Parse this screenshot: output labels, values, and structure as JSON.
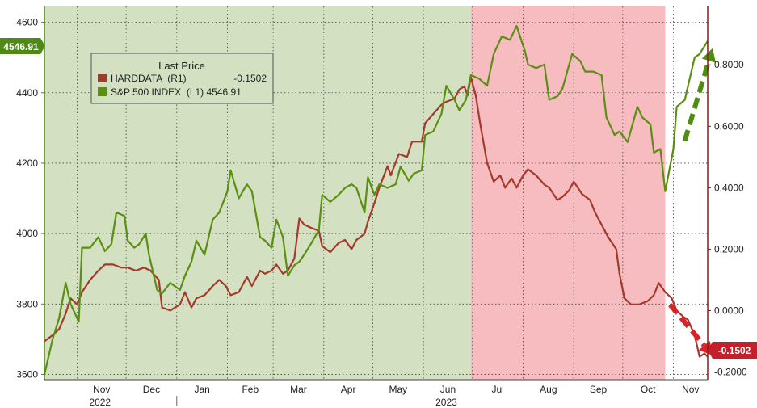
{
  "colors": {
    "sp500": "#5a8f12",
    "harddata": "#a33a2c",
    "bg_green": "#d3e0c1",
    "bg_red": "#f6bcbf",
    "arrow_green": "#4f8d10",
    "arrow_red": "#d9222a",
    "grid": "#444444",
    "left_axis": "#4f8a14",
    "right_axis": "#8b1a1a"
  },
  "legend": {
    "title": "Last Price",
    "items": [
      {
        "label": "HARDDATA  (R1)",
        "value": "-0.1502"
      },
      {
        "label": "S&P 500 INDEX  (L1) 4546.91",
        "value": ""
      }
    ]
  },
  "badges": {
    "left": "4546.91",
    "right": "-0.1502"
  },
  "chart_data": {
    "type": "line",
    "x_axis": {
      "months": [
        {
          "label": "Nov",
          "date": "2022-11-01"
        },
        {
          "label": "Dec",
          "date": "2022-12-01"
        },
        {
          "label": "Jan",
          "date": "2023-01-01"
        },
        {
          "label": "Feb",
          "date": "2023-02-01"
        },
        {
          "label": "Mar",
          "date": "2023-03-01"
        },
        {
          "label": "Apr",
          "date": "2023-04-01"
        },
        {
          "label": "May",
          "date": "2023-05-01"
        },
        {
          "label": "Jun",
          "date": "2023-06-01"
        },
        {
          "label": "Jul",
          "date": "2023-07-01"
        },
        {
          "label": "Aug",
          "date": "2023-08-01"
        },
        {
          "label": "Sep",
          "date": "2023-09-01"
        },
        {
          "label": "Oct",
          "date": "2023-10-01"
        },
        {
          "label": "Nov",
          "date": "2023-11-01"
        }
      ],
      "years": [
        {
          "label": "2022",
          "date": "2022-11-15"
        },
        {
          "label": "2023",
          "date": "2023-06-15"
        }
      ],
      "range": [
        "2022-10-12",
        "2023-11-22"
      ]
    },
    "left_axis": {
      "ticks": [
        "4600",
        "4400",
        "4200",
        "4000",
        "3800",
        "3600"
      ],
      "tick_values": [
        4600,
        4400,
        4200,
        4000,
        3800,
        3600
      ],
      "ylim": [
        3585,
        4645
      ]
    },
    "right_axis": {
      "ticks": [
        "0.8000",
        "0.6000",
        "0.4000",
        "0.2000",
        "0.0000",
        "-0.2000"
      ],
      "tick_values": [
        0.8,
        0.6,
        0.4,
        0.2,
        0.0,
        -0.2
      ],
      "ylim": [
        -0.225,
        0.99
      ]
    },
    "grid": true,
    "shaded_regions": [
      {
        "color": "green",
        "from": "2022-10-12",
        "to": "2023-06-30"
      },
      {
        "color": "red",
        "from": "2023-06-30",
        "to": "2023-10-27"
      }
    ],
    "series": [
      {
        "name": "S&P 500 INDEX",
        "axis": "left",
        "points": [
          [
            "2022-10-12",
            3600
          ],
          [
            "2022-10-17",
            3700
          ],
          [
            "2022-10-21",
            3760
          ],
          [
            "2022-10-25",
            3860
          ],
          [
            "2022-10-28",
            3800
          ],
          [
            "2022-11-02",
            3750
          ],
          [
            "2022-11-04",
            3960
          ],
          [
            "2022-11-09",
            3960
          ],
          [
            "2022-11-14",
            3990
          ],
          [
            "2022-11-18",
            3950
          ],
          [
            "2022-11-22",
            3970
          ],
          [
            "2022-11-25",
            4060
          ],
          [
            "2022-11-30",
            4050
          ],
          [
            "2022-12-02",
            3980
          ],
          [
            "2022-12-06",
            3960
          ],
          [
            "2022-12-09",
            3970
          ],
          [
            "2022-12-13",
            4000
          ],
          [
            "2022-12-15",
            3940
          ],
          [
            "2022-12-20",
            3840
          ],
          [
            "2022-12-23",
            3830
          ],
          [
            "2022-12-28",
            3860
          ],
          [
            "2023-01-03",
            3840
          ],
          [
            "2023-01-06",
            3880
          ],
          [
            "2023-01-10",
            3920
          ],
          [
            "2023-01-13",
            3980
          ],
          [
            "2023-01-18",
            3940
          ],
          [
            "2023-01-23",
            4040
          ],
          [
            "2023-01-27",
            4060
          ],
          [
            "2023-02-01",
            4120
          ],
          [
            "2023-02-03",
            4180
          ],
          [
            "2023-02-08",
            4100
          ],
          [
            "2023-02-13",
            4140
          ],
          [
            "2023-02-16",
            4120
          ],
          [
            "2023-02-21",
            3990
          ],
          [
            "2023-02-24",
            3980
          ],
          [
            "2023-02-28",
            3960
          ],
          [
            "2023-03-03",
            4040
          ],
          [
            "2023-03-07",
            3990
          ],
          [
            "2023-03-10",
            3880
          ],
          [
            "2023-03-14",
            3910
          ],
          [
            "2023-03-17",
            3920
          ],
          [
            "2023-03-20",
            3940
          ],
          [
            "2023-03-24",
            3970
          ],
          [
            "2023-03-29",
            4010
          ],
          [
            "2023-03-31",
            4110
          ],
          [
            "2023-04-05",
            4090
          ],
          [
            "2023-04-10",
            4110
          ],
          [
            "2023-04-14",
            4130
          ],
          [
            "2023-04-18",
            4140
          ],
          [
            "2023-04-21",
            4130
          ],
          [
            "2023-04-26",
            4060
          ],
          [
            "2023-04-28",
            4160
          ],
          [
            "2023-05-02",
            4110
          ],
          [
            "2023-05-05",
            4140
          ],
          [
            "2023-05-10",
            4130
          ],
          [
            "2023-05-15",
            4140
          ],
          [
            "2023-05-18",
            4190
          ],
          [
            "2023-05-23",
            4150
          ],
          [
            "2023-05-26",
            4170
          ],
          [
            "2023-05-31",
            4180
          ],
          [
            "2023-06-02",
            4280
          ],
          [
            "2023-06-07",
            4290
          ],
          [
            "2023-06-12",
            4340
          ],
          [
            "2023-06-15",
            4420
          ],
          [
            "2023-06-20",
            4380
          ],
          [
            "2023-06-23",
            4350
          ],
          [
            "2023-06-27",
            4380
          ],
          [
            "2023-06-30",
            4450
          ],
          [
            "2023-07-05",
            4440
          ],
          [
            "2023-07-10",
            4420
          ],
          [
            "2023-07-14",
            4510
          ],
          [
            "2023-07-19",
            4560
          ],
          [
            "2023-07-24",
            4550
          ],
          [
            "2023-07-28",
            4590
          ],
          [
            "2023-08-02",
            4520
          ],
          [
            "2023-08-04",
            4480
          ],
          [
            "2023-08-09",
            4470
          ],
          [
            "2023-08-14",
            4480
          ],
          [
            "2023-08-17",
            4380
          ],
          [
            "2023-08-22",
            4390
          ],
          [
            "2023-08-25",
            4410
          ],
          [
            "2023-08-31",
            4510
          ],
          [
            "2023-09-05",
            4490
          ],
          [
            "2023-09-08",
            4460
          ],
          [
            "2023-09-13",
            4460
          ],
          [
            "2023-09-18",
            4450
          ],
          [
            "2023-09-21",
            4330
          ],
          [
            "2023-09-26",
            4280
          ],
          [
            "2023-09-29",
            4290
          ],
          [
            "2023-10-04",
            4260
          ],
          [
            "2023-10-10",
            4360
          ],
          [
            "2023-10-13",
            4330
          ],
          [
            "2023-10-18",
            4310
          ],
          [
            "2023-10-20",
            4230
          ],
          [
            "2023-10-24",
            4240
          ],
          [
            "2023-10-27",
            4120
          ],
          [
            "2023-11-01",
            4240
          ],
          [
            "2023-11-03",
            4360
          ],
          [
            "2023-11-08",
            4380
          ],
          [
            "2023-11-10",
            4420
          ],
          [
            "2023-11-14",
            4500
          ],
          [
            "2023-11-17",
            4510
          ],
          [
            "2023-11-22",
            4546.91
          ]
        ]
      },
      {
        "name": "HARDDATA",
        "axis": "right",
        "points": [
          [
            "2022-10-12",
            -0.1
          ],
          [
            "2022-10-17",
            -0.08
          ],
          [
            "2022-10-21",
            -0.06
          ],
          [
            "2022-10-25",
            -0.01
          ],
          [
            "2022-10-28",
            0.04
          ],
          [
            "2022-11-01",
            0.02
          ],
          [
            "2022-11-04",
            0.06
          ],
          [
            "2022-11-09",
            0.1
          ],
          [
            "2022-11-14",
            0.13
          ],
          [
            "2022-11-18",
            0.15
          ],
          [
            "2022-11-23",
            0.15
          ],
          [
            "2022-11-28",
            0.14
          ],
          [
            "2022-12-02",
            0.14
          ],
          [
            "2022-12-07",
            0.13
          ],
          [
            "2022-12-12",
            0.14
          ],
          [
            "2022-12-16",
            0.13
          ],
          [
            "2022-12-21",
            0.1
          ],
          [
            "2022-12-23",
            0.01
          ],
          [
            "2022-12-28",
            0.0
          ],
          [
            "2023-01-03",
            0.02
          ],
          [
            "2023-01-06",
            0.06
          ],
          [
            "2023-01-10",
            0.01
          ],
          [
            "2023-01-13",
            0.04
          ],
          [
            "2023-01-18",
            0.05
          ],
          [
            "2023-01-23",
            0.08
          ],
          [
            "2023-01-27",
            0.1
          ],
          [
            "2023-01-31",
            0.08
          ],
          [
            "2023-02-03",
            0.05
          ],
          [
            "2023-02-08",
            0.06
          ],
          [
            "2023-02-13",
            0.11
          ],
          [
            "2023-02-16",
            0.08
          ],
          [
            "2023-02-21",
            0.13
          ],
          [
            "2023-02-24",
            0.12
          ],
          [
            "2023-02-28",
            0.13
          ],
          [
            "2023-03-03",
            0.15
          ],
          [
            "2023-03-07",
            0.12
          ],
          [
            "2023-03-10",
            0.13
          ],
          [
            "2023-03-14",
            0.17
          ],
          [
            "2023-03-17",
            0.3
          ],
          [
            "2023-03-20",
            0.28
          ],
          [
            "2023-03-24",
            0.27
          ],
          [
            "2023-03-29",
            0.26
          ],
          [
            "2023-03-31",
            0.21
          ],
          [
            "2023-04-05",
            0.19
          ],
          [
            "2023-04-10",
            0.22
          ],
          [
            "2023-04-14",
            0.23
          ],
          [
            "2023-04-18",
            0.2
          ],
          [
            "2023-04-21",
            0.23
          ],
          [
            "2023-04-26",
            0.25
          ],
          [
            "2023-04-28",
            0.29
          ],
          [
            "2023-05-02",
            0.35
          ],
          [
            "2023-05-05",
            0.4
          ],
          [
            "2023-05-10",
            0.47
          ],
          [
            "2023-05-12",
            0.44
          ],
          [
            "2023-05-17",
            0.51
          ],
          [
            "2023-05-22",
            0.5
          ],
          [
            "2023-05-25",
            0.55
          ],
          [
            "2023-05-31",
            0.55
          ],
          [
            "2023-06-02",
            0.61
          ],
          [
            "2023-06-07",
            0.64
          ],
          [
            "2023-06-12",
            0.67
          ],
          [
            "2023-06-15",
            0.68
          ],
          [
            "2023-06-20",
            0.69
          ],
          [
            "2023-06-23",
            0.72
          ],
          [
            "2023-06-26",
            0.73
          ],
          [
            "2023-06-28",
            0.7
          ],
          [
            "2023-06-30",
            0.76
          ],
          [
            "2023-07-03",
            0.7
          ],
          [
            "2023-07-06",
            0.6
          ],
          [
            "2023-07-10",
            0.48
          ],
          [
            "2023-07-14",
            0.42
          ],
          [
            "2023-07-18",
            0.44
          ],
          [
            "2023-07-21",
            0.4
          ],
          [
            "2023-07-25",
            0.43
          ],
          [
            "2023-07-28",
            0.4
          ],
          [
            "2023-08-01",
            0.44
          ],
          [
            "2023-08-04",
            0.46
          ],
          [
            "2023-08-09",
            0.44
          ],
          [
            "2023-08-14",
            0.41
          ],
          [
            "2023-08-17",
            0.4
          ],
          [
            "2023-08-22",
            0.36
          ],
          [
            "2023-08-25",
            0.37
          ],
          [
            "2023-08-29",
            0.39
          ],
          [
            "2023-09-01",
            0.42
          ],
          [
            "2023-09-06",
            0.38
          ],
          [
            "2023-09-11",
            0.36
          ],
          [
            "2023-09-14",
            0.32
          ],
          [
            "2023-09-18",
            0.28
          ],
          [
            "2023-09-22",
            0.24
          ],
          [
            "2023-09-27",
            0.2
          ],
          [
            "2023-09-29",
            0.12
          ],
          [
            "2023-10-02",
            0.04
          ],
          [
            "2023-10-06",
            0.02
          ],
          [
            "2023-10-11",
            0.02
          ],
          [
            "2023-10-16",
            0.03
          ],
          [
            "2023-10-20",
            0.05
          ],
          [
            "2023-10-23",
            0.09
          ],
          [
            "2023-10-27",
            0.06
          ],
          [
            "2023-10-31",
            0.04
          ],
          [
            "2023-11-03",
            0.0
          ],
          [
            "2023-11-07",
            -0.02
          ],
          [
            "2023-11-10",
            -0.03
          ],
          [
            "2023-11-14",
            -0.08
          ],
          [
            "2023-11-17",
            -0.15
          ],
          [
            "2023-11-20",
            -0.14
          ],
          [
            "2023-11-22",
            -0.1502
          ]
        ]
      }
    ],
    "arrows": [
      {
        "color": "green",
        "from": [
          "2023-11-01",
          4240
        ],
        "to": [
          "2023-11-22",
          4540
        ],
        "axis": "left"
      },
      {
        "color": "red",
        "from": [
          "2023-10-27",
          0.04
        ],
        "to": [
          "2023-11-22",
          -0.13
        ],
        "axis": "right"
      }
    ]
  }
}
